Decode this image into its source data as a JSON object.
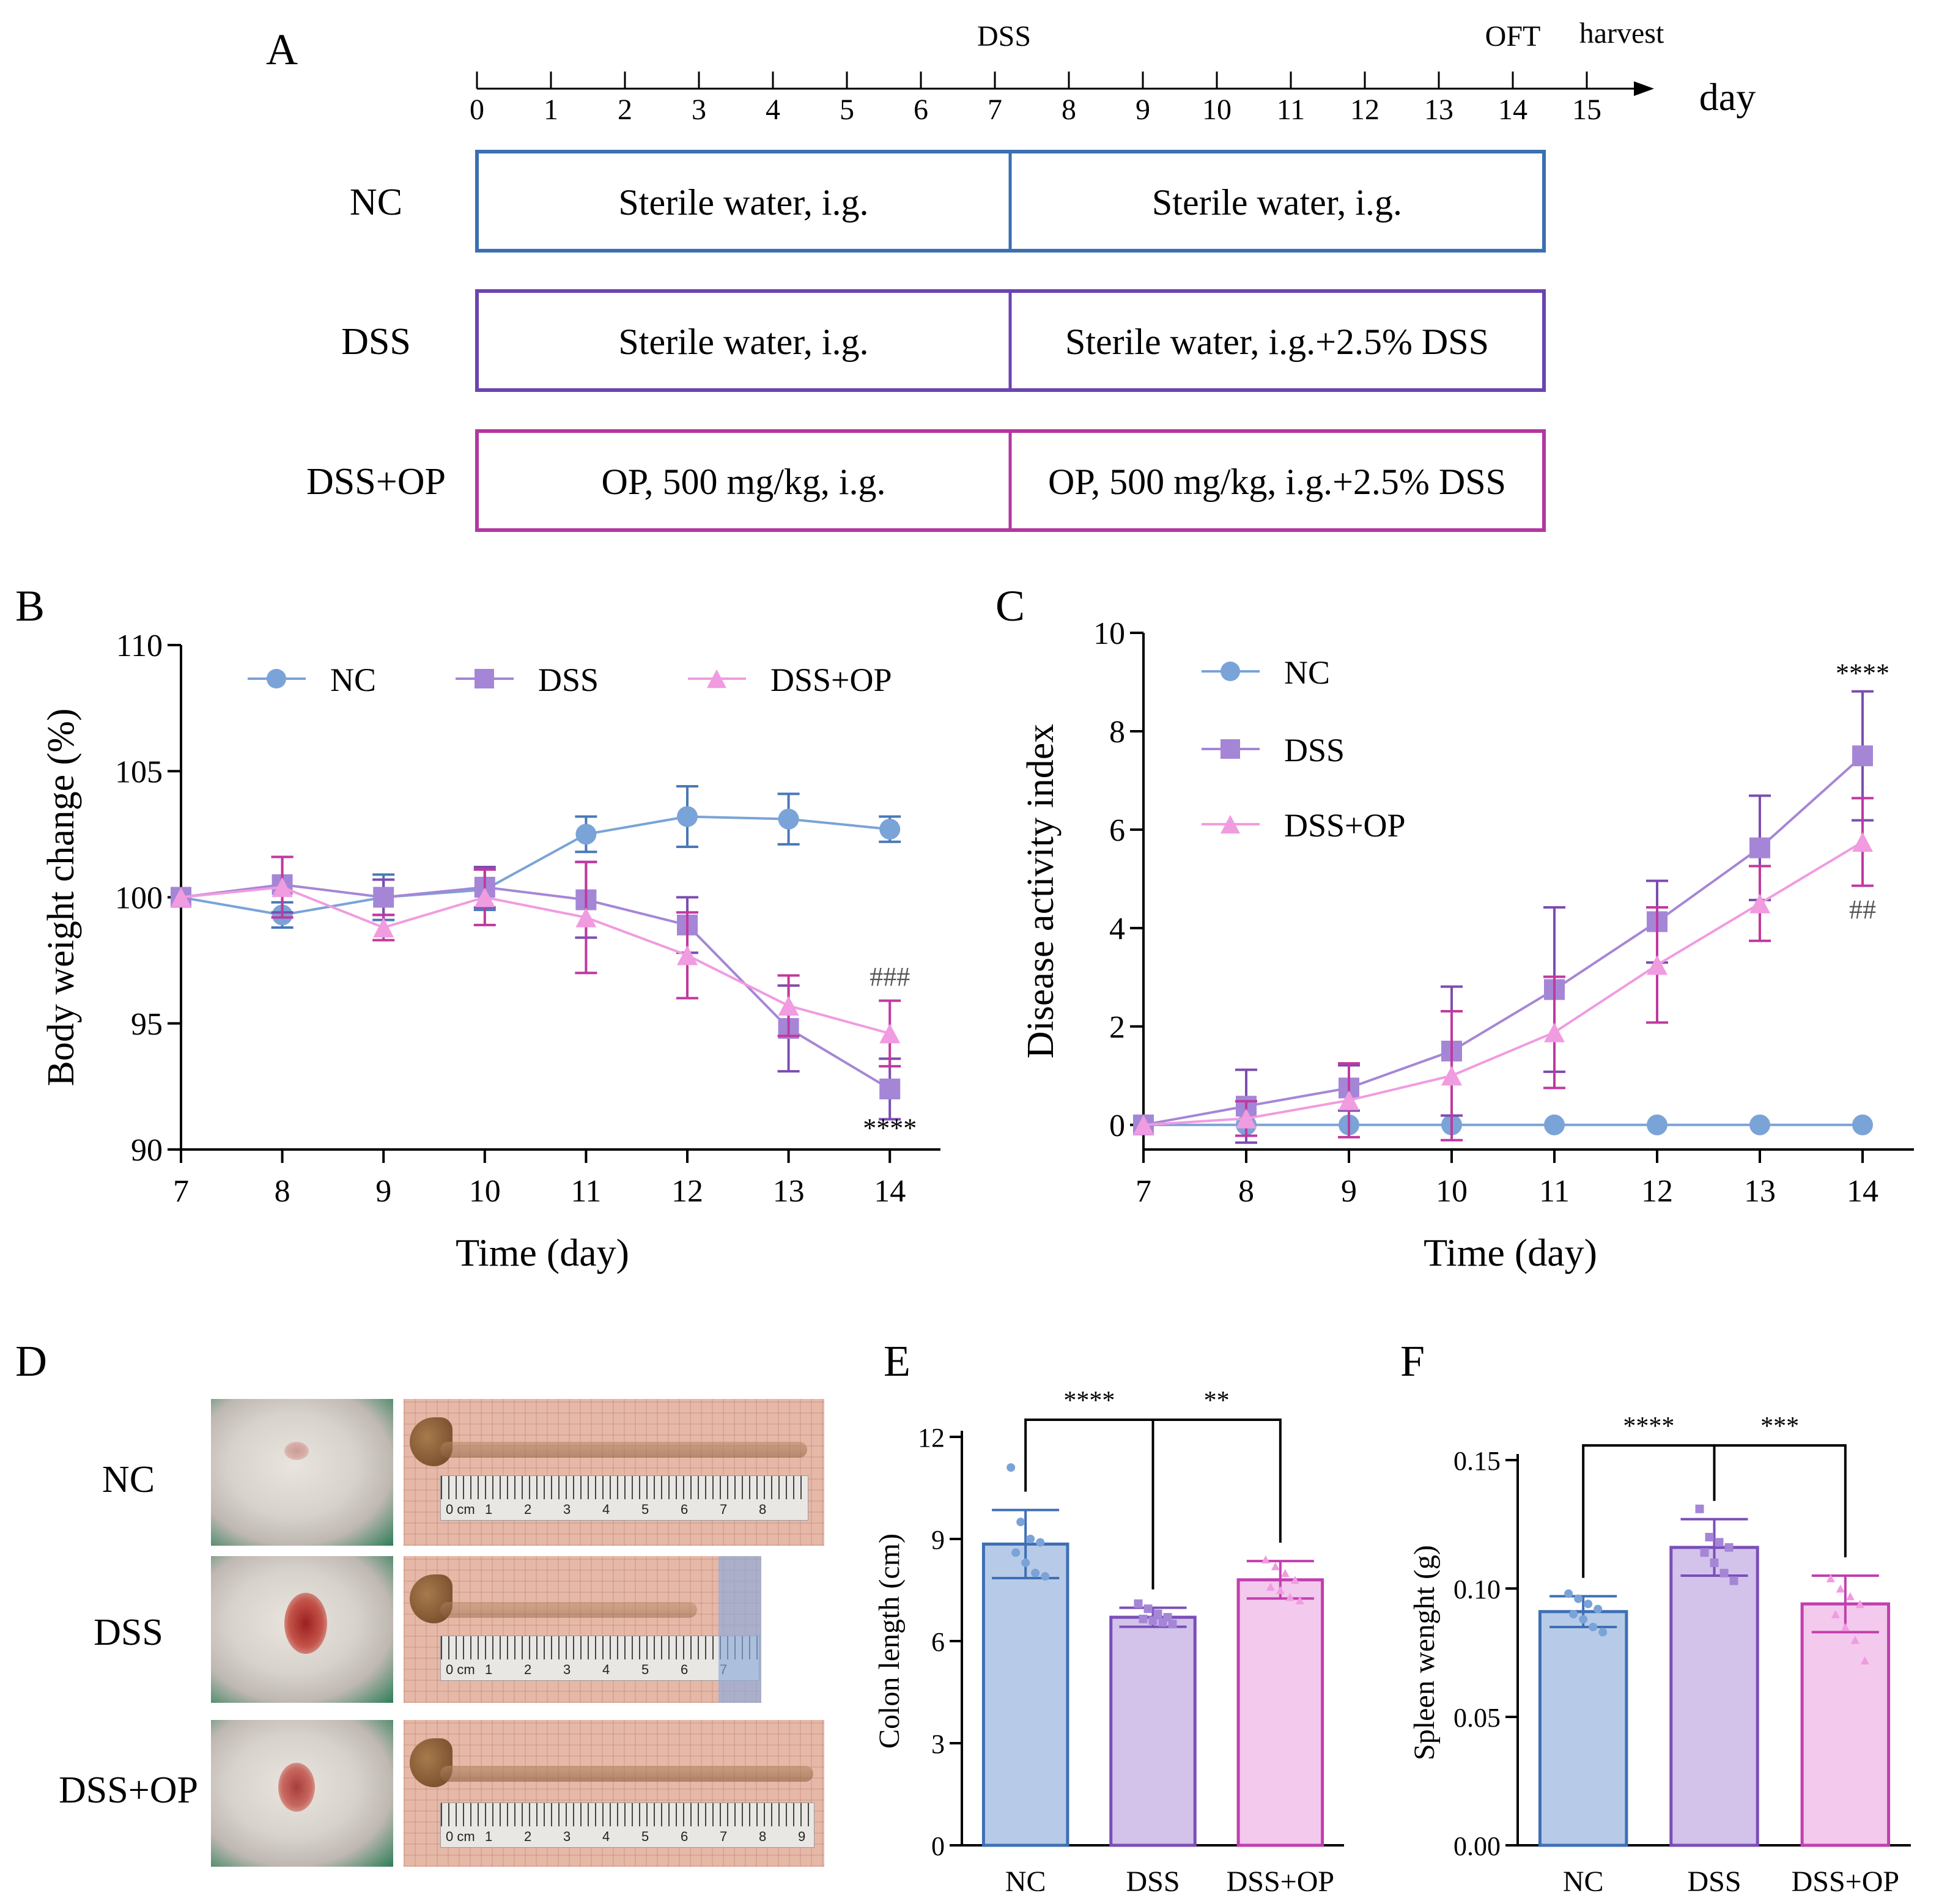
{
  "panel_labels": {
    "a": "A",
    "b": "B",
    "c": "C",
    "d": "D",
    "e": "E",
    "f": "F"
  },
  "timeline": {
    "ticks": [
      "0",
      "1",
      "2",
      "3",
      "4",
      "5",
      "6",
      "7",
      "8",
      "9",
      "10",
      "11",
      "12",
      "13",
      "14",
      "15"
    ],
    "unit_label": "day",
    "markers": {
      "dss": "DSS",
      "oft": "OFT",
      "harvest": "harvest"
    },
    "groups": [
      {
        "name": "NC",
        "phase1": "Sterile water, i.g.",
        "phase2": "Sterile water, i.g.",
        "color": "#3a6fb0"
      },
      {
        "name": "DSS",
        "phase1": "Sterile water, i.g.",
        "phase2": "Sterile water, i.g.+2.5% DSS",
        "color": "#6a44b0"
      },
      {
        "name": "DSS+OP",
        "phase1": "OP, 500 mg/kg, i.g.",
        "phase2": "OP, 500 mg/kg, i.g.+2.5% DSS",
        "color": "#b3379f"
      }
    ]
  },
  "colors": {
    "nc": "#7aa3d8",
    "dss": "#a586d6",
    "dssop": "#f19be0",
    "nc_bar": "#b7cbe8",
    "dss_bar": "#d3c3ea",
    "dssop_bar": "#f3c9ee",
    "nc_edge": "#3f6fb5",
    "dss_edge": "#7a4fb8",
    "dssop_edge": "#c23fae",
    "nc_err": "#4a78b8",
    "dss_err": "#7b4db0",
    "dssop_err": "#c0399f",
    "axis": "#000000"
  },
  "chart_data": [
    {
      "id": "B",
      "type": "line",
      "xlabel": "Time (day)",
      "ylabel": "Body weight change (%)",
      "x": [
        7,
        8,
        9,
        10,
        11,
        12,
        13,
        14
      ],
      "xlim": [
        7,
        14.5
      ],
      "ylim": [
        90,
        110
      ],
      "yticks": [
        90,
        95,
        100,
        105,
        110
      ],
      "series": [
        {
          "name": "NC",
          "marker": "circle",
          "values": [
            100,
            99.3,
            100.0,
            100.3,
            102.5,
            103.2,
            103.1,
            102.7
          ],
          "err": [
            0,
            0.5,
            0.9,
            0.8,
            0.7,
            1.2,
            1.0,
            0.5
          ]
        },
        {
          "name": "DSS",
          "marker": "square",
          "values": [
            100,
            100.5,
            100.0,
            100.4,
            99.9,
            98.9,
            94.8,
            92.4
          ],
          "err": [
            0,
            1.1,
            0.7,
            0.8,
            1.5,
            1.1,
            1.7,
            1.2
          ]
        },
        {
          "name": "DSS+OP",
          "marker": "triangle",
          "values": [
            100,
            100.4,
            98.8,
            100.0,
            99.2,
            97.7,
            95.7,
            94.6
          ],
          "err": [
            0,
            1.2,
            0.5,
            1.1,
            2.2,
            1.7,
            1.2,
            1.3
          ]
        }
      ],
      "annotations": [
        {
          "text": "###",
          "x": 14,
          "y": 96.5
        },
        {
          "text": "****",
          "x": 14,
          "y": 90.5
        }
      ]
    },
    {
      "id": "C",
      "type": "line",
      "xlabel": "Time (day)",
      "ylabel": "Disease activity index",
      "x": [
        7,
        8,
        9,
        10,
        11,
        12,
        13,
        14
      ],
      "xlim": [
        7,
        14.5
      ],
      "ylim": [
        -0.5,
        10
      ],
      "yticks": [
        0,
        2,
        4,
        6,
        8,
        10
      ],
      "series": [
        {
          "name": "NC",
          "marker": "circle",
          "values": [
            0,
            0,
            0,
            0,
            0,
            0,
            0,
            0
          ],
          "err": [
            0,
            0,
            0,
            0,
            0,
            0,
            0,
            0
          ]
        },
        {
          "name": "DSS",
          "marker": "square",
          "values": [
            0,
            0.38,
            0.75,
            1.5,
            2.75,
            4.13,
            5.63,
            7.5
          ],
          "err": [
            0,
            0.74,
            0.46,
            1.31,
            1.67,
            0.83,
            1.06,
            1.31
          ]
        },
        {
          "name": "DSS+OP",
          "marker": "triangle",
          "values": [
            0,
            0.13,
            0.5,
            1.0,
            1.88,
            3.25,
            4.5,
            5.75
          ],
          "err": [
            0,
            0.35,
            0.75,
            1.31,
            1.13,
            1.17,
            0.76,
            0.89
          ]
        }
      ],
      "annotations": [
        {
          "text": "****",
          "x": 14,
          "y": 9.0
        },
        {
          "text": "##",
          "x": 14,
          "y": 4.2
        }
      ]
    },
    {
      "id": "E",
      "type": "bar",
      "ylabel": "Colon length (cm)",
      "categories": [
        "NC",
        "DSS",
        "DSS+OP"
      ],
      "values": [
        8.85,
        6.7,
        7.8
      ],
      "err": [
        1.0,
        0.28,
        0.55
      ],
      "points": [
        [
          11.1,
          9.5,
          9.0,
          8.9,
          8.6,
          8.3,
          8.0,
          7.9
        ],
        [
          7.1,
          6.95,
          6.8,
          6.7,
          6.65,
          6.6,
          6.55,
          6.5
        ],
        [
          8.4,
          8.2,
          8.0,
          7.8,
          7.6,
          7.5,
          7.3,
          7.2
        ]
      ],
      "ylim": [
        0,
        12
      ],
      "yticks": [
        0,
        3,
        6,
        9,
        12
      ],
      "comparisons": [
        {
          "from": 0,
          "to": 1,
          "text": "****"
        },
        {
          "from": 1,
          "to": 2,
          "text": "**"
        }
      ]
    },
    {
      "id": "F",
      "type": "bar",
      "ylabel": "Spleen wenght (g)",
      "categories": [
        "NC",
        "DSS",
        "DSS+OP"
      ],
      "values": [
        0.091,
        0.116,
        0.094
      ],
      "err": [
        0.006,
        0.011,
        0.011
      ],
      "points": [
        [
          0.098,
          0.096,
          0.094,
          0.092,
          0.09,
          0.088,
          0.085,
          0.083
        ],
        [
          0.131,
          0.12,
          0.118,
          0.116,
          0.114,
          0.11,
          0.106,
          0.103
        ],
        [
          0.104,
          0.1,
          0.097,
          0.094,
          0.09,
          0.085,
          0.08,
          0.072
        ]
      ],
      "ylim": [
        0,
        0.15
      ],
      "yticks": [
        "0.00",
        "0.05",
        "0.10",
        "0.15"
      ],
      "comparisons": [
        {
          "from": 0,
          "to": 1,
          "text": "****"
        },
        {
          "from": 1,
          "to": 2,
          "text": "***"
        }
      ]
    }
  ],
  "panel_d": {
    "groups": [
      "NC",
      "DSS",
      "DSS+OP"
    ],
    "ruler_numbers": [
      "0 cm",
      "1",
      "2",
      "3",
      "4",
      "5",
      "6",
      "7",
      "8",
      "9"
    ]
  }
}
